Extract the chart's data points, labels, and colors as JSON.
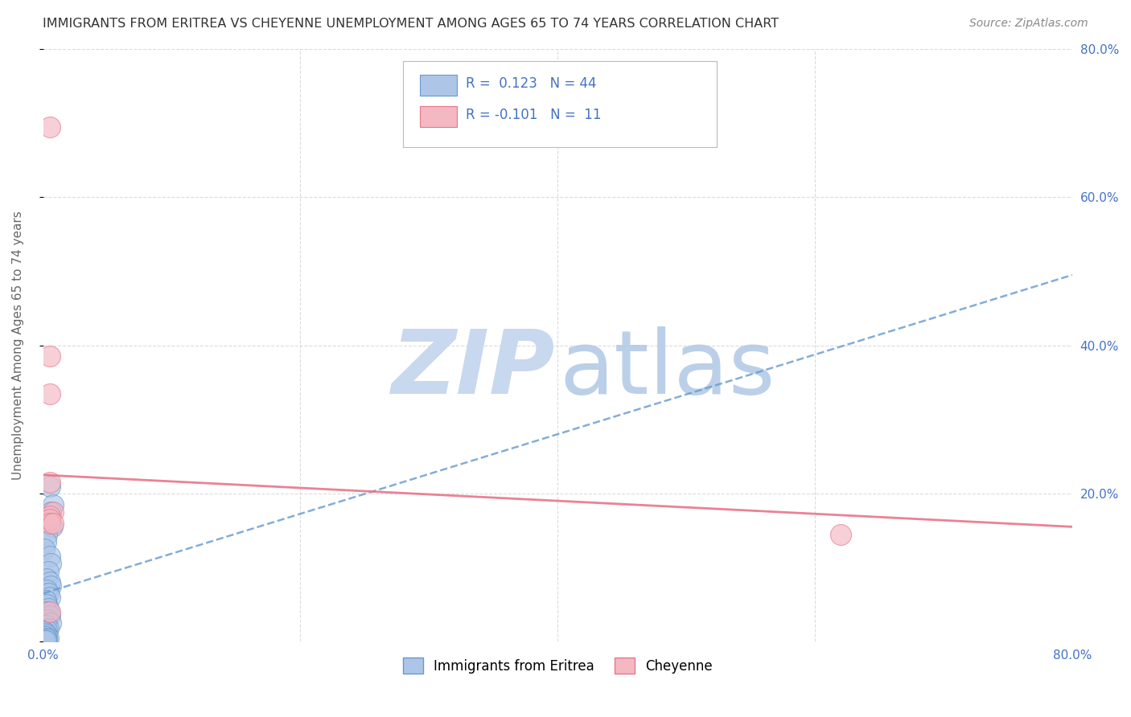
{
  "title": "IMMIGRANTS FROM ERITREA VS CHEYENNE UNEMPLOYMENT AMONG AGES 65 TO 74 YEARS CORRELATION CHART",
  "source": "Source: ZipAtlas.com",
  "ylabel": "Unemployment Among Ages 65 to 74 years",
  "xlim": [
    0,
    0.8
  ],
  "ylim": [
    0,
    0.8
  ],
  "blue_scatter_x": [
    0.005,
    0.008,
    0.006,
    0.004,
    0.007,
    0.003,
    0.002,
    0.001,
    0.005,
    0.006,
    0.004,
    0.003,
    0.005,
    0.006,
    0.003,
    0.004,
    0.005,
    0.002,
    0.003,
    0.004,
    0.003,
    0.005,
    0.003,
    0.006,
    0.002,
    0.004,
    0.003,
    0.001,
    0.002,
    0.003,
    0.002,
    0.004,
    0.002,
    0.001,
    0.001,
    0.002,
    0.001,
    0.001,
    0.002,
    0.001,
    0.003,
    0.002,
    0.001,
    0.002
  ],
  "blue_scatter_y": [
    0.21,
    0.185,
    0.175,
    0.165,
    0.155,
    0.145,
    0.135,
    0.125,
    0.115,
    0.105,
    0.095,
    0.085,
    0.08,
    0.075,
    0.07,
    0.065,
    0.06,
    0.055,
    0.05,
    0.045,
    0.04,
    0.035,
    0.03,
    0.025,
    0.022,
    0.018,
    0.015,
    0.013,
    0.011,
    0.009,
    0.007,
    0.005,
    0.003,
    0.001,
    0.001,
    0.001,
    0.0,
    0.0,
    0.001,
    0.002,
    0.003,
    0.004,
    0.002,
    0.001
  ],
  "pink_scatter_x": [
    0.005,
    0.005,
    0.005,
    0.008,
    0.005,
    0.005,
    0.005,
    0.005,
    0.008,
    0.62,
    0.005
  ],
  "pink_scatter_y": [
    0.695,
    0.385,
    0.335,
    0.175,
    0.215,
    0.17,
    0.165,
    0.16,
    0.16,
    0.145,
    0.04
  ],
  "blue_trend_x": [
    0.0,
    0.8
  ],
  "blue_trend_y": [
    0.065,
    0.495
  ],
  "pink_trend_x": [
    0.0,
    0.8
  ],
  "pink_trend_y": [
    0.225,
    0.155
  ],
  "R_blue": 0.123,
  "N_blue": 44,
  "R_pink": -0.101,
  "N_pink": 11,
  "blue_color": "#adc6e8",
  "blue_edge": "#6699cc",
  "pink_color": "#f4b8c2",
  "pink_edge": "#e8758a",
  "blue_line_color": "#6699cc",
  "pink_line_color": "#e8758a",
  "legend_label_blue": "Immigrants from Eritrea",
  "legend_label_pink": "Cheyenne",
  "title_color": "#333333",
  "axis_color": "#4472c4",
  "grid_color": "#cccccc",
  "watermark_zip_color": "#c8d8ee",
  "watermark_atlas_color": "#b0c8e4",
  "bg_color": "#ffffff",
  "source_color": "#888888"
}
